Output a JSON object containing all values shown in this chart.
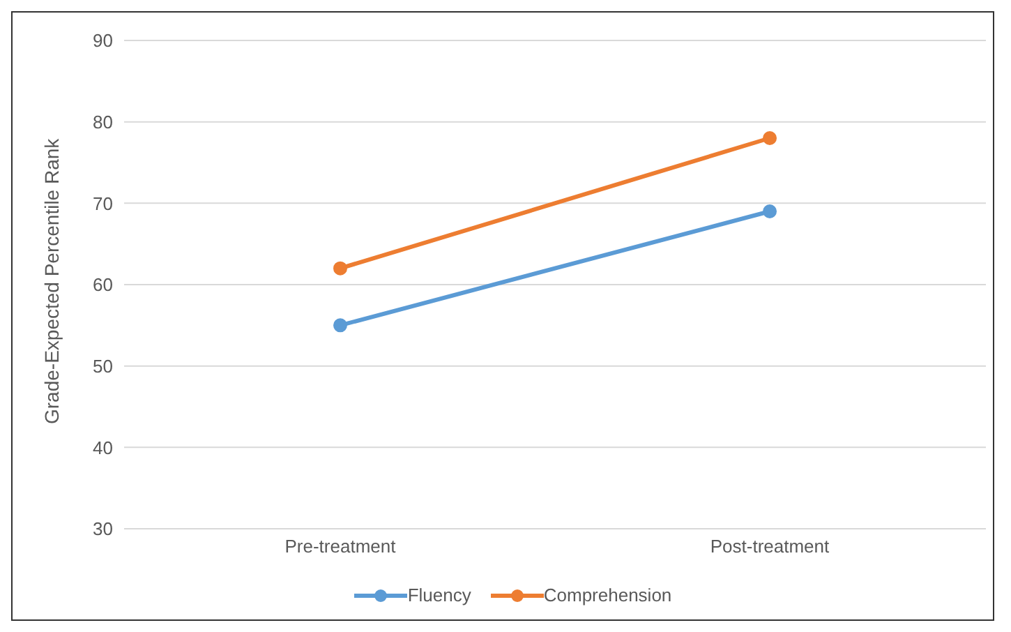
{
  "chart_data": {
    "type": "line",
    "ylabel": "Grade-Expected Percentile Rank",
    "categories": [
      "Pre-treatment",
      "Post-treatment"
    ],
    "series": [
      {
        "name": "Fluency",
        "color": "#5b9bd5",
        "values": [
          55,
          69
        ]
      },
      {
        "name": "Comprehension",
        "color": "#ed7d31",
        "values": [
          62,
          78
        ]
      }
    ],
    "ylim": [
      30,
      90
    ],
    "yticks": [
      30,
      40,
      50,
      60,
      70,
      80,
      90
    ],
    "grid": "y",
    "legend": "bottom",
    "marker": "circle",
    "line_style": "solid"
  }
}
